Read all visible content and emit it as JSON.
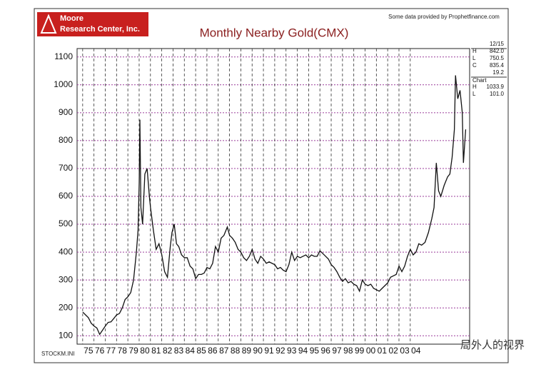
{
  "chart_data": {
    "type": "line",
    "title": "Monthly Nearby Gold(CMX)",
    "logo": [
      "Moore",
      "Research Center, Inc."
    ],
    "source": "Some data provided by Prophetfinance.com",
    "footer": "STOCKM.INI",
    "watermark": "局外人的视界",
    "info": {
      "date": "12/15",
      "rows": [
        [
          "H",
          "842.0"
        ],
        [
          "L",
          "750.5"
        ],
        [
          "C",
          "835.4"
        ],
        [
          "",
          "19.2"
        ]
      ],
      "chart_label": "Chart",
      "chart_rows": [
        [
          "H",
          "1033.9"
        ],
        [
          "L",
          "101.0"
        ]
      ]
    },
    "xlim": [
      1974.5,
      2009.25
    ],
    "xticks": [
      {
        "value": 1975.5,
        "label": "75"
      },
      {
        "value": 1976.5,
        "label": "76"
      },
      {
        "value": 1977.5,
        "label": "77"
      },
      {
        "value": 1978.5,
        "label": "78"
      },
      {
        "value": 1979.5,
        "label": "79"
      },
      {
        "value": 1980.5,
        "label": "80"
      },
      {
        "value": 1981.5,
        "label": "81"
      },
      {
        "value": 1982.5,
        "label": "82"
      },
      {
        "value": 1983.5,
        "label": "83"
      },
      {
        "value": 1984.5,
        "label": "84"
      },
      {
        "value": 1985.5,
        "label": "85"
      },
      {
        "value": 1986.5,
        "label": "86"
      },
      {
        "value": 1987.5,
        "label": "87"
      },
      {
        "value": 1988.5,
        "label": "88"
      },
      {
        "value": 1989.5,
        "label": "89"
      },
      {
        "value": 1990.5,
        "label": "90"
      },
      {
        "value": 1991.5,
        "label": "91"
      },
      {
        "value": 1992.5,
        "label": "92"
      },
      {
        "value": 1993.5,
        "label": "93"
      },
      {
        "value": 1994.5,
        "label": "94"
      },
      {
        "value": 1995.5,
        "label": "95"
      },
      {
        "value": 1996.5,
        "label": "96"
      },
      {
        "value": 1997.5,
        "label": "97"
      },
      {
        "value": 1998.5,
        "label": "98"
      },
      {
        "value": 1999.5,
        "label": "99"
      },
      {
        "value": 2000.5,
        "label": "00"
      },
      {
        "value": 2001.5,
        "label": "01"
      },
      {
        "value": 2002.5,
        "label": "02"
      },
      {
        "value": 2003.5,
        "label": "03"
      },
      {
        "value": 2004.5,
        "label": "04"
      }
    ],
    "ylim": [
      70,
      1130
    ],
    "yticks": [
      100,
      200,
      300,
      400,
      500,
      600,
      700,
      800,
      900,
      1000,
      1100
    ],
    "grid": true,
    "series": [
      {
        "name": "Gold",
        "color": "#111111",
        "x": [
          1975.0,
          1975.25,
          1975.5,
          1975.75,
          1976.0,
          1976.25,
          1976.5,
          1976.75,
          1977.0,
          1977.25,
          1977.5,
          1977.75,
          1978.0,
          1978.25,
          1978.5,
          1978.75,
          1979.0,
          1979.25,
          1979.5,
          1979.75,
          1979.9,
          1980.0,
          1980.06,
          1980.15,
          1980.3,
          1980.5,
          1980.7,
          1980.9,
          1981.0,
          1981.25,
          1981.5,
          1981.75,
          1982.0,
          1982.25,
          1982.5,
          1982.75,
          1982.9,
          1983.1,
          1983.3,
          1983.5,
          1983.75,
          1984.0,
          1984.25,
          1984.5,
          1984.75,
          1985.0,
          1985.25,
          1985.5,
          1985.75,
          1986.0,
          1986.25,
          1986.5,
          1986.75,
          1987.0,
          1987.25,
          1987.5,
          1987.8,
          1988.0,
          1988.25,
          1988.5,
          1988.75,
          1989.0,
          1989.25,
          1989.5,
          1989.75,
          1990.0,
          1990.25,
          1990.5,
          1990.75,
          1991.0,
          1991.25,
          1991.5,
          1991.75,
          1992.0,
          1992.25,
          1992.5,
          1992.75,
          1993.0,
          1993.25,
          1993.5,
          1993.75,
          1994.0,
          1994.25,
          1994.5,
          1994.75,
          1995.0,
          1995.25,
          1995.5,
          1995.75,
          1996.0,
          1996.25,
          1996.5,
          1996.75,
          1997.0,
          1997.25,
          1997.5,
          1997.75,
          1998.0,
          1998.25,
          1998.5,
          1998.75,
          1999.0,
          1999.25,
          1999.5,
          1999.75,
          2000.0,
          2000.25,
          2000.5,
          2000.75,
          2001.0,
          2001.25,
          2001.5,
          2001.75,
          2002.0,
          2002.25,
          2002.5,
          2002.75,
          2003.0,
          2003.25,
          2003.5,
          2003.75,
          2004.0,
          2004.25,
          2004.5,
          2004.75,
          2005.0,
          2005.3,
          2005.6,
          2005.9,
          2006.1,
          2006.3,
          2006.5,
          2006.7,
          2007.0,
          2007.3,
          2007.5,
          2007.7,
          2007.9,
          2008.0,
          2008.2,
          2008.4,
          2008.6,
          2008.7,
          2008.9
        ],
        "values": [
          185,
          175,
          165,
          145,
          135,
          128,
          105,
          120,
          135,
          148,
          150,
          162,
          175,
          180,
          200,
          230,
          240,
          255,
          300,
          400,
          480,
          650,
          875,
          560,
          500,
          680,
          700,
          600,
          560,
          480,
          410,
          430,
          390,
          330,
          310,
          420,
          470,
          500,
          430,
          420,
          390,
          380,
          380,
          350,
          340,
          305,
          320,
          320,
          325,
          345,
          340,
          360,
          420,
          400,
          450,
          460,
          490,
          460,
          450,
          435,
          410,
          400,
          380,
          370,
          385,
          410,
          375,
          360,
          385,
          375,
          360,
          365,
          360,
          355,
          340,
          345,
          335,
          330,
          355,
          400,
          370,
          385,
          380,
          385,
          390,
          380,
          390,
          385,
          385,
          405,
          395,
          385,
          375,
          355,
          345,
          330,
          310,
          295,
          305,
          290,
          295,
          285,
          280,
          260,
          300,
          285,
          280,
          285,
          270,
          265,
          260,
          270,
          280,
          290,
          310,
          315,
          320,
          350,
          330,
          350,
          385,
          410,
          390,
          400,
          430,
          425,
          435,
          470,
          520,
          560,
          720,
          620,
          600,
          640,
          670,
          680,
          740,
          840,
          1033.9,
          950,
          980,
          900,
          720,
          840
        ]
      }
    ]
  }
}
